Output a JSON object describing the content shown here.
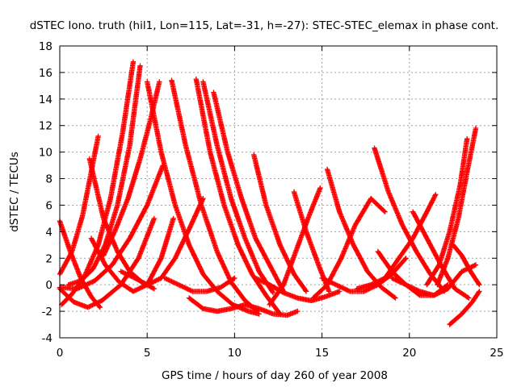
{
  "chart_data": {
    "type": "scatter",
    "title": "dSTEC Iono. truth (hil1, Lon=115, Lat=-31, h=-27): STEC-STEC_elemax in phase cont.",
    "xlabel": "GPS time / hours of day 260 of year 2008",
    "ylabel": "dSTEC  / TECUs",
    "xlim": [
      0,
      25
    ],
    "ylim": [
      -4,
      18
    ],
    "x_ticks": [
      "0",
      "5",
      "10",
      "15",
      "20",
      "25"
    ],
    "y_ticks": [
      "-4",
      "-2",
      "0",
      "2",
      "4",
      "6",
      "8",
      "10",
      "12",
      "14",
      "16",
      "18"
    ],
    "grid": true,
    "marker": "+",
    "color": "#ff0000",
    "series": [
      {
        "x": [
          0.0,
          0.6,
          1.2,
          1.8,
          2.3
        ],
        "y": [
          4.8,
          2.5,
          0.5,
          -0.9,
          -1.7
        ]
      },
      {
        "x": [
          0.0,
          0.7,
          1.3,
          1.8,
          2.2
        ],
        "y": [
          0.8,
          2.5,
          5.2,
          8.5,
          11.2
        ]
      },
      {
        "x": [
          0.0,
          0.8,
          1.6,
          2.4,
          3.5,
          4.5,
          5.4
        ],
        "y": [
          -0.3,
          -1.3,
          -1.7,
          -1.2,
          0.0,
          2.0,
          5.0
        ]
      },
      {
        "x": [
          0.1,
          0.7,
          1.4,
          2.2,
          2.9,
          3.6,
          4.2
        ],
        "y": [
          -1.5,
          -0.7,
          0.6,
          3.0,
          6.5,
          11.5,
          16.8
        ]
      },
      {
        "x": [
          0.0,
          1.0,
          2.0,
          3.0,
          4.0,
          5.0,
          5.9
        ],
        "y": [
          -0.2,
          -0.3,
          0.3,
          1.5,
          3.5,
          6.0,
          9.0
        ]
      },
      {
        "x": [
          0.5,
          1.2,
          1.9,
          2.6,
          3.3,
          4.0,
          4.6
        ],
        "y": [
          0.0,
          0.3,
          1.2,
          3.0,
          6.0,
          10.5,
          16.5
        ]
      },
      {
        "x": [
          1.8,
          2.6,
          3.4,
          4.2,
          5.0,
          5.8,
          6.5
        ],
        "y": [
          3.5,
          1.5,
          0.2,
          -0.5,
          0.0,
          2.0,
          5.0
        ]
      },
      {
        "x": [
          2.5,
          3.2,
          3.9,
          4.6,
          5.2,
          5.7
        ],
        "y": [
          2.2,
          4.2,
          6.5,
          9.5,
          12.5,
          15.3
        ]
      },
      {
        "x": [
          1.7,
          2.5,
          3.3,
          4.0,
          4.7,
          5.4
        ],
        "y": [
          9.5,
          5.0,
          2.5,
          1.0,
          0.2,
          -0.3
        ]
      },
      {
        "x": [
          5.0,
          5.8,
          6.6,
          7.4,
          8.2,
          9.0,
          9.9,
          10.8,
          11.4
        ],
        "y": [
          15.3,
          10.0,
          6.0,
          3.0,
          0.8,
          -0.5,
          -1.5,
          -2.0,
          -2.2
        ]
      },
      {
        "x": [
          6.4,
          7.2,
          8.1,
          9.0,
          9.8,
          10.6,
          11.3
        ],
        "y": [
          15.4,
          10.5,
          6.0,
          2.5,
          0.2,
          -1.2,
          -2.0
        ]
      },
      {
        "x": [
          6.0,
          6.8,
          7.6,
          8.4,
          9.2,
          10.0
        ],
        "y": [
          0.5,
          0.0,
          -0.5,
          -0.5,
          -0.2,
          0.5
        ]
      },
      {
        "x": [
          3.5,
          4.3,
          5.0,
          5.8,
          6.6,
          7.4,
          8.2
        ],
        "y": [
          1.0,
          0.5,
          0.0,
          0.5,
          2.0,
          4.2,
          6.5
        ]
      },
      {
        "x": [
          7.8,
          8.6,
          9.4,
          10.2,
          11.0,
          11.8,
          12.6
        ],
        "y": [
          15.5,
          10.0,
          6.0,
          3.0,
          0.8,
          -0.8,
          -2.2
        ]
      },
      {
        "x": [
          8.2,
          9.0,
          9.8,
          10.6,
          11.4,
          12.2
        ],
        "y": [
          15.3,
          10.5,
          6.5,
          3.5,
          1.0,
          -0.6
        ]
      },
      {
        "x": [
          8.8,
          9.6,
          10.4,
          11.2,
          12.0,
          12.8
        ],
        "y": [
          14.5,
          10.0,
          6.5,
          3.5,
          1.5,
          -0.5
        ]
      },
      {
        "x": [
          7.4,
          8.2,
          9.0,
          9.8,
          10.6,
          11.4,
          12.2,
          13.0,
          13.6
        ],
        "y": [
          -1.0,
          -1.8,
          -2.0,
          -1.8,
          -1.5,
          -1.8,
          -2.2,
          -2.3,
          -2.0
        ]
      },
      {
        "x": [
          11.1,
          11.8,
          12.6,
          13.4,
          14.1
        ],
        "y": [
          9.8,
          6.0,
          3.0,
          0.8,
          -0.5
        ]
      },
      {
        "x": [
          12.0,
          12.8,
          13.5,
          14.2,
          14.9
        ],
        "y": [
          -1.5,
          0.0,
          2.5,
          5.0,
          7.3
        ]
      },
      {
        "x": [
          13.4,
          14.1,
          14.8,
          15.4
        ],
        "y": [
          7.0,
          4.0,
          1.5,
          -0.5
        ]
      },
      {
        "x": [
          11.2,
          12.0,
          12.8,
          13.6,
          14.4,
          15.2,
          16.0
        ],
        "y": [
          0.5,
          0.0,
          -0.6,
          -1.0,
          -1.2,
          -0.9,
          -0.5
        ]
      },
      {
        "x": [
          15.3,
          16.0,
          16.8,
          17.6,
          18.4,
          19.2
        ],
        "y": [
          8.7,
          5.5,
          3.0,
          1.0,
          -0.2,
          -1.0
        ]
      },
      {
        "x": [
          15.0,
          15.8,
          16.6,
          17.4,
          18.2,
          19.0,
          19.8
        ],
        "y": [
          0.5,
          0.0,
          -0.5,
          -0.5,
          0.0,
          0.8,
          2.0
        ]
      },
      {
        "x": [
          14.5,
          15.3,
          16.1,
          16.9,
          17.8,
          18.6
        ],
        "y": [
          -1.0,
          0.0,
          2.0,
          4.5,
          6.5,
          5.5
        ]
      },
      {
        "x": [
          18.0,
          18.8,
          19.6,
          20.4,
          21.2,
          22.0
        ],
        "y": [
          10.3,
          7.0,
          4.5,
          2.5,
          0.8,
          -0.5
        ]
      },
      {
        "x": [
          17.0,
          17.8,
          18.6,
          19.4,
          20.2,
          21.0,
          21.5
        ],
        "y": [
          -0.3,
          0.0,
          0.5,
          2.0,
          3.5,
          5.5,
          6.8
        ]
      },
      {
        "x": [
          18.2,
          19.0,
          19.8,
          20.6,
          21.4,
          22.2
        ],
        "y": [
          2.5,
          1.0,
          0.0,
          -0.8,
          -0.8,
          0.0
        ]
      },
      {
        "x": [
          20.2,
          21.0,
          21.8,
          22.6,
          23.4
        ],
        "y": [
          5.5,
          3.5,
          1.5,
          -0.3,
          -1.0
        ]
      },
      {
        "x": [
          19.0,
          19.8,
          20.6,
          21.4,
          22.2,
          23.0,
          23.8
        ],
        "y": [
          0.5,
          0.0,
          -0.5,
          -0.8,
          -0.3,
          1.0,
          1.5
        ]
      },
      {
        "x": [
          21.6,
          22.2,
          22.8,
          23.3,
          23.8
        ],
        "y": [
          0.0,
          2.0,
          5.0,
          8.5,
          11.8
        ]
      },
      {
        "x": [
          21.0,
          21.7,
          22.3,
          22.9,
          23.3
        ],
        "y": [
          0.0,
          1.5,
          4.0,
          7.5,
          11.0
        ]
      },
      {
        "x": [
          22.3,
          23.0,
          23.6,
          24.0
        ],
        "y": [
          -3.0,
          -2.2,
          -1.3,
          -0.5
        ]
      },
      {
        "x": [
          22.5,
          23.0,
          23.5,
          24.0
        ],
        "y": [
          3.0,
          2.2,
          1.0,
          0.0
        ]
      }
    ]
  }
}
